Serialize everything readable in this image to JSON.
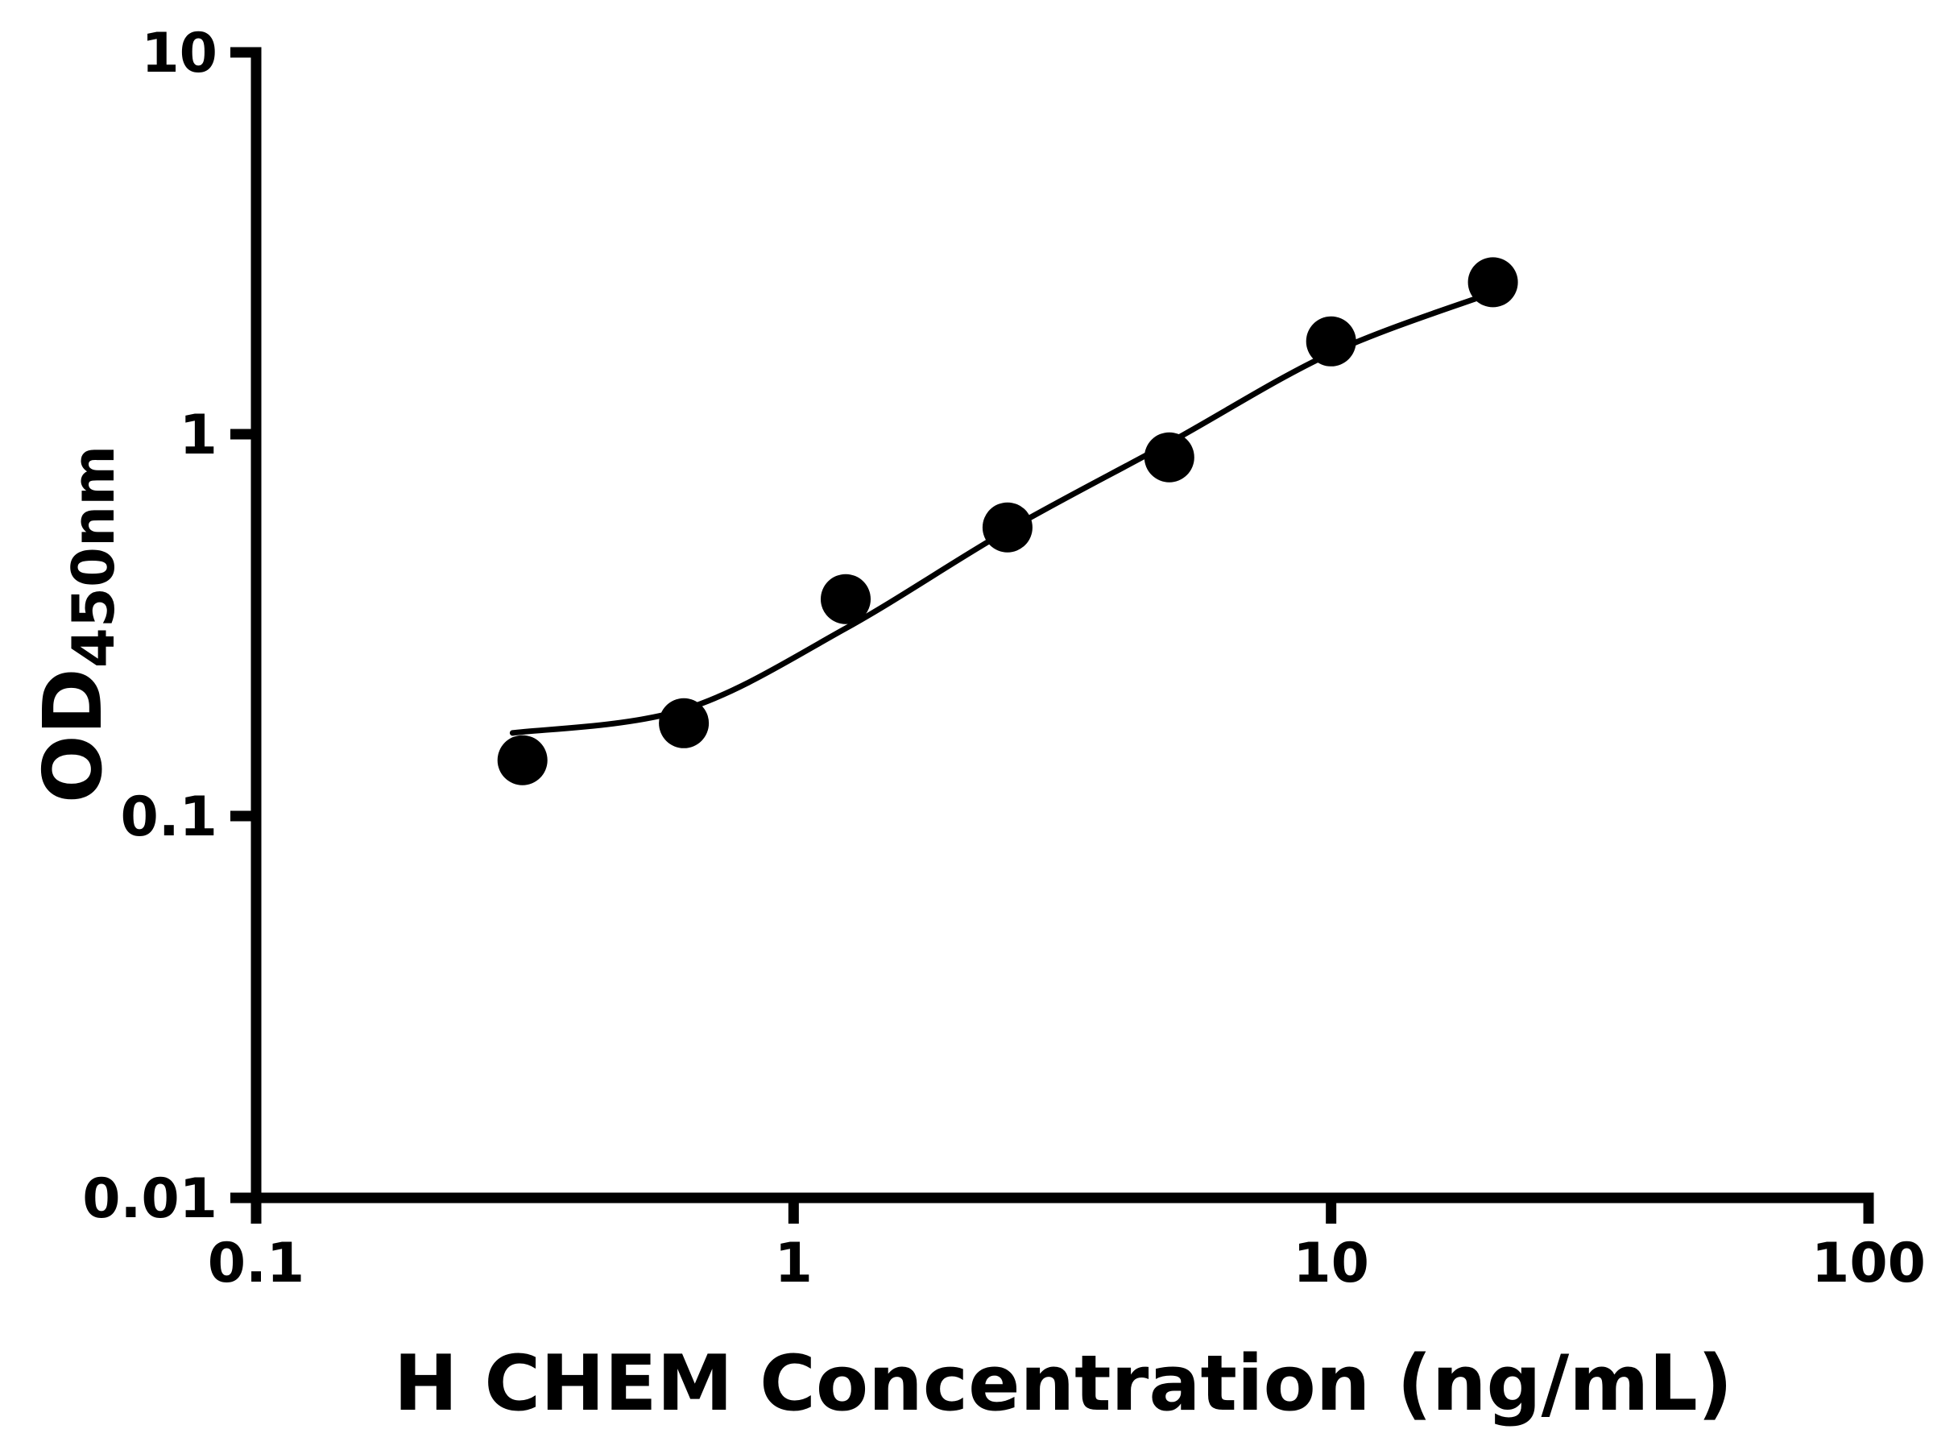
{
  "chart_data": {
    "type": "scatter",
    "title": "",
    "xlabel": "H CHEM Concentration (ng/mL)",
    "ylabel_main": "OD",
    "ylabel_sub": "450nm",
    "x_scale": "log",
    "y_scale": "log",
    "xlim": [
      0.1,
      100
    ],
    "ylim": [
      0.01,
      10
    ],
    "x_ticks": [
      0.1,
      1,
      10,
      100
    ],
    "x_tick_labels": [
      "0.1",
      "1",
      "10",
      "100"
    ],
    "y_ticks": [
      0.01,
      0.1,
      1,
      10
    ],
    "y_tick_labels": [
      "0.01",
      "0.1",
      "1",
      "10"
    ],
    "grid": false,
    "legend": false,
    "colors": {
      "foreground": "#000000",
      "background": "#ffffff"
    },
    "series": [
      {
        "name": "fitted-curve",
        "type": "line",
        "color": "#000000",
        "points": [
          {
            "x": 0.3,
            "y": 0.165
          },
          {
            "x": 0.625,
            "y": 0.19
          },
          {
            "x": 1.25,
            "y": 0.31
          },
          {
            "x": 2.5,
            "y": 0.56
          },
          {
            "x": 5,
            "y": 0.95
          },
          {
            "x": 10,
            "y": 1.63
          },
          {
            "x": 20,
            "y": 2.35
          }
        ]
      },
      {
        "name": "standard-data-points",
        "type": "scatter",
        "marker": "circle",
        "color": "#000000",
        "points": [
          {
            "x": 0.313,
            "y": 0.14
          },
          {
            "x": 0.625,
            "y": 0.175
          },
          {
            "x": 1.25,
            "y": 0.37
          },
          {
            "x": 2.5,
            "y": 0.57
          },
          {
            "x": 5,
            "y": 0.87
          },
          {
            "x": 10,
            "y": 1.75
          },
          {
            "x": 20,
            "y": 2.5
          }
        ]
      }
    ]
  }
}
